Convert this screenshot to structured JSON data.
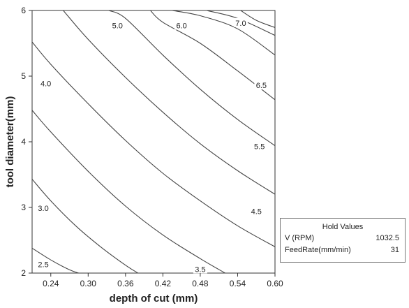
{
  "chart_data": {
    "type": "contour",
    "xlabel": "depth of cut (mm)",
    "ylabel": "tool diameter(mm)",
    "xlim": [
      0.21,
      0.6
    ],
    "ylim": [
      2,
      6
    ],
    "x_ticks": [
      0.24,
      0.3,
      0.36,
      0.42,
      0.48,
      0.54,
      0.6
    ],
    "x_tick_labels": [
      "0.24",
      "0.30",
      "0.36",
      "0.42",
      "0.48",
      "0.54",
      "0.60"
    ],
    "y_ticks": [
      2,
      3,
      4,
      5,
      6
    ],
    "y_tick_labels": [
      "2",
      "3",
      "4",
      "5",
      "6"
    ],
    "contours": [
      {
        "level": "2.5",
        "points": [
          [
            0.21,
            2.38
          ],
          [
            0.24,
            2.2
          ],
          [
            0.27,
            2.05
          ],
          [
            0.285,
            2.0
          ]
        ],
        "label_at": [
          0.228,
          2.12
        ]
      },
      {
        "level": "3.0",
        "points": [
          [
            0.21,
            3.43
          ],
          [
            0.24,
            3.1
          ],
          [
            0.28,
            2.72
          ],
          [
            0.32,
            2.4
          ],
          [
            0.36,
            2.12
          ],
          [
            0.38,
            2.0
          ]
        ],
        "label_at": [
          0.228,
          2.98
        ]
      },
      {
        "level": "3.5",
        "points": [
          [
            0.21,
            4.48
          ],
          [
            0.24,
            4.15
          ],
          [
            0.3,
            3.55
          ],
          [
            0.36,
            3.02
          ],
          [
            0.42,
            2.58
          ],
          [
            0.48,
            2.22
          ],
          [
            0.52,
            2.0
          ]
        ],
        "label_at": [
          0.48,
          2.05
        ]
      },
      {
        "level": "4.0",
        "points": [
          [
            0.21,
            5.52
          ],
          [
            0.24,
            5.18
          ],
          [
            0.3,
            4.58
          ],
          [
            0.36,
            4.02
          ],
          [
            0.42,
            3.52
          ],
          [
            0.48,
            3.1
          ],
          [
            0.54,
            2.72
          ],
          [
            0.6,
            2.4
          ]
        ],
        "label_at": [
          0.232,
          4.88
        ]
      },
      {
        "level": "4.5",
        "points": [
          [
            0.26,
            6.0
          ],
          [
            0.3,
            5.56
          ],
          [
            0.36,
            4.98
          ],
          [
            0.42,
            4.45
          ],
          [
            0.48,
            3.97
          ],
          [
            0.54,
            3.56
          ],
          [
            0.6,
            3.2
          ]
        ],
        "label_at": [
          0.57,
          2.93
        ]
      },
      {
        "level": "5.0",
        "points": [
          [
            0.333,
            6.0
          ],
          [
            0.36,
            5.88
          ],
          [
            0.42,
            5.32
          ],
          [
            0.48,
            4.8
          ],
          [
            0.54,
            4.34
          ],
          [
            0.6,
            3.94
          ]
        ],
        "label_at": [
          0.347,
          5.76
        ]
      },
      {
        "level": "5.5",
        "points": [
          [
            0.4,
            6.0
          ],
          [
            0.42,
            5.82
          ],
          [
            0.48,
            5.5
          ],
          [
            0.54,
            5.08
          ],
          [
            0.6,
            4.64
          ]
        ],
        "label_at": [
          0.575,
          3.92
        ]
      },
      {
        "level": "6.0",
        "points": [
          [
            0.435,
            6.0
          ],
          [
            0.48,
            5.92
          ],
          [
            0.54,
            5.72
          ],
          [
            0.6,
            5.32
          ]
        ],
        "label_at": [
          0.45,
          5.76
        ]
      },
      {
        "level": "6.5",
        "points": [
          [
            0.49,
            6.0
          ],
          [
            0.54,
            5.88
          ],
          [
            0.6,
            5.62
          ]
        ],
        "label_at": [
          0.578,
          4.85
        ]
      },
      {
        "level": "7.0",
        "points": [
          [
            0.545,
            6.0
          ],
          [
            0.57,
            5.85
          ],
          [
            0.6,
            5.74
          ]
        ],
        "label_at": [
          0.545,
          5.8
        ]
      }
    ]
  },
  "hold_values": {
    "title": "Hold Values",
    "rows": [
      {
        "label": "V (RPM)",
        "value": "1032.5"
      },
      {
        "label": "FeedRate(mm/min)",
        "value": "31"
      }
    ]
  }
}
